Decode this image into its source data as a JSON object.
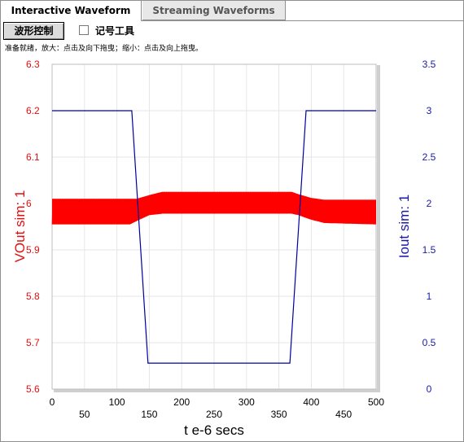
{
  "tabs": [
    {
      "label": "Interactive Waveform",
      "active": true
    },
    {
      "label": "Streaming Waveforms",
      "active": false
    }
  ],
  "toolbar": {
    "wave_control_label": "波形控制",
    "marker_tool_label": "记号工具",
    "marker_tool_checked": false
  },
  "hint_text": "准备就绪，放大：点击及向下拖曳；缩小：点击及向上拖曳。",
  "chart_data": {
    "type": "line",
    "x_label": "t e-6 secs",
    "y_left_label": "VOut sim:  1",
    "y_right_label": "Iout sim:  1",
    "x_range": [
      0,
      500
    ],
    "y_left_range": [
      5.6,
      6.3
    ],
    "y_right_range": [
      0,
      3.5
    ],
    "x_ticks": [
      "0",
      "50",
      "100",
      "150",
      "200",
      "250",
      "300",
      "350",
      "400",
      "450",
      "500"
    ],
    "y_left_ticks": [
      "5.6",
      "5.7",
      "5.8",
      "5.9",
      "6",
      "6.1",
      "6.2",
      "6.3"
    ],
    "y_right_ticks": [
      "0",
      "0.5",
      "1",
      "1.5",
      "2",
      "2.5",
      "3",
      "3.5"
    ],
    "grid": true,
    "colors": {
      "vout": "#ff0000",
      "iout": "#0000a0"
    },
    "series": [
      {
        "name": "VOut sim:  1",
        "axis": "left",
        "x": [
          0,
          120,
          130,
          150,
          170,
          370,
          380,
          400,
          420,
          500
        ],
        "ymin": [
          5.955,
          5.955,
          5.962,
          5.975,
          5.978,
          5.978,
          5.975,
          5.965,
          5.958,
          5.955
        ],
        "ymax": [
          6.01,
          6.01,
          6.01,
          6.018,
          6.025,
          6.025,
          6.02,
          6.012,
          6.008,
          6.008
        ]
      },
      {
        "name": "Iout sim:  1",
        "axis": "right",
        "x": [
          0,
          123,
          148,
          367,
          392,
          500
        ],
        "y": [
          3,
          3,
          0.28,
          0.28,
          3,
          3
        ]
      }
    ]
  }
}
